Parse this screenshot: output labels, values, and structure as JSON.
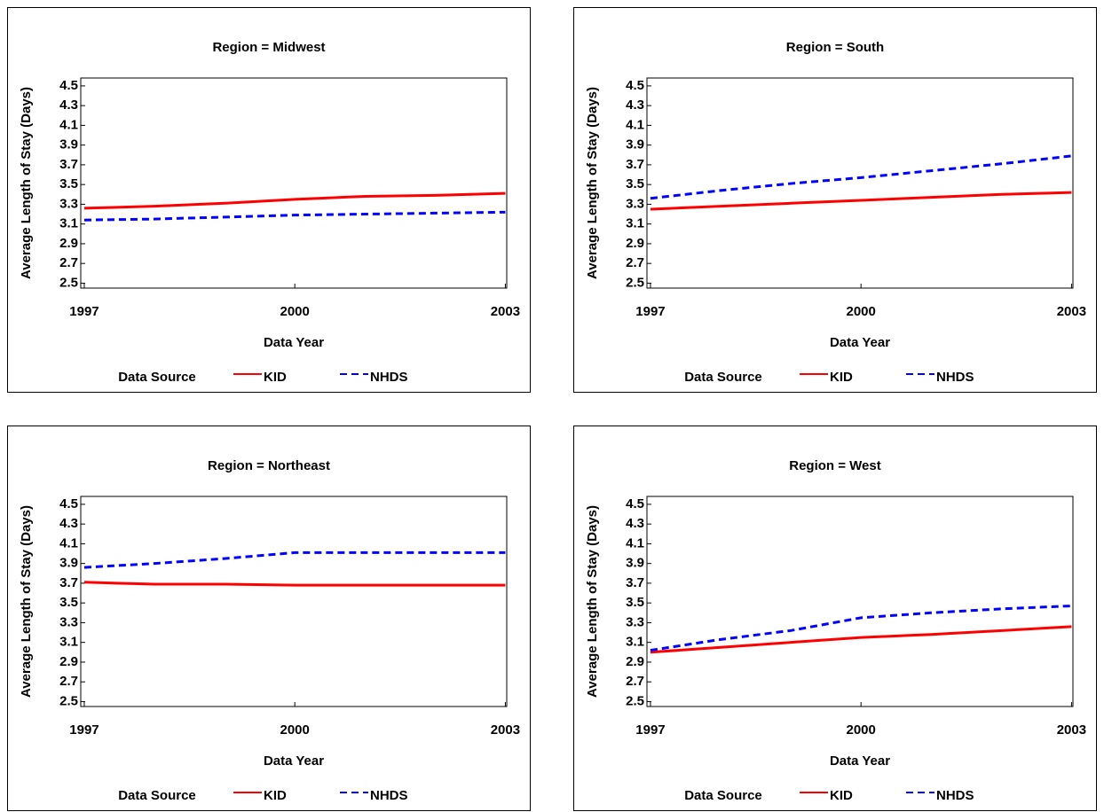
{
  "chart_data": [
    {
      "type": "line",
      "title": "Region = Midwest",
      "x_label": "Data Year",
      "y_label": "Average Length of Stay (Days)",
      "legend_title": "Data Source",
      "x": [
        1997,
        1998,
        1999,
        2000,
        2001,
        2002,
        2003
      ],
      "xlim": [
        1996.95,
        2003.02
      ],
      "xticks": [
        1997,
        2000,
        2003
      ],
      "ylim": [
        2.45,
        4.58
      ],
      "yticks": [
        2.5,
        2.7,
        2.9,
        3.1,
        3.3,
        3.5,
        3.7,
        3.9,
        4.1,
        4.3,
        4.5
      ],
      "series": [
        {
          "name": "KID",
          "color": "#ff0000",
          "style": "solid",
          "values": [
            3.26,
            3.28,
            3.31,
            3.35,
            3.38,
            3.39,
            3.41
          ]
        },
        {
          "name": "NHDS",
          "color": "#0000ff",
          "style": "dashed",
          "values": [
            3.14,
            3.15,
            3.17,
            3.19,
            3.2,
            3.21,
            3.22
          ]
        }
      ]
    },
    {
      "type": "line",
      "title": "Region = South",
      "x_label": "Data Year",
      "y_label": "Average Length of Stay (Days)",
      "legend_title": "Data Source",
      "x": [
        1997,
        1998,
        1999,
        2000,
        2001,
        2002,
        2003
      ],
      "xlim": [
        1996.95,
        2003.02
      ],
      "xticks": [
        1997,
        2000,
        2003
      ],
      "ylim": [
        2.45,
        4.58
      ],
      "yticks": [
        2.5,
        2.7,
        2.9,
        3.1,
        3.3,
        3.5,
        3.7,
        3.9,
        4.1,
        4.3,
        4.5
      ],
      "series": [
        {
          "name": "KID",
          "color": "#ff0000",
          "style": "solid",
          "values": [
            3.25,
            3.28,
            3.31,
            3.34,
            3.37,
            3.4,
            3.42
          ]
        },
        {
          "name": "NHDS",
          "color": "#0000ff",
          "style": "dashed",
          "values": [
            3.36,
            3.44,
            3.51,
            3.57,
            3.64,
            3.71,
            3.79
          ]
        }
      ]
    },
    {
      "type": "line",
      "title": "Region = Northeast",
      "x_label": "Data Year",
      "y_label": "Average Length of Stay (Days)",
      "legend_title": "Data Source",
      "x": [
        1997,
        1998,
        1999,
        2000,
        2001,
        2002,
        2003
      ],
      "xlim": [
        1996.95,
        2003.02
      ],
      "xticks": [
        1997,
        2000,
        2003
      ],
      "ylim": [
        2.45,
        4.58
      ],
      "yticks": [
        2.5,
        2.7,
        2.9,
        3.1,
        3.3,
        3.5,
        3.7,
        3.9,
        4.1,
        4.3,
        4.5
      ],
      "series": [
        {
          "name": "KID",
          "color": "#ff0000",
          "style": "solid",
          "values": [
            3.71,
            3.69,
            3.69,
            3.68,
            3.68,
            3.68,
            3.68
          ]
        },
        {
          "name": "NHDS",
          "color": "#0000ff",
          "style": "dashed",
          "values": [
            3.86,
            3.9,
            3.95,
            4.01,
            4.01,
            4.01,
            4.01
          ]
        }
      ]
    },
    {
      "type": "line",
      "title": "Region = West",
      "x_label": "Data Year",
      "y_label": "Average Length of Stay (Days)",
      "legend_title": "Data Source",
      "x": [
        1997,
        1998,
        1999,
        2000,
        2001,
        2002,
        2003
      ],
      "xlim": [
        1996.95,
        2003.02
      ],
      "xticks": [
        1997,
        2000,
        2003
      ],
      "ylim": [
        2.45,
        4.58
      ],
      "yticks": [
        2.5,
        2.7,
        2.9,
        3.1,
        3.3,
        3.5,
        3.7,
        3.9,
        4.1,
        4.3,
        4.5
      ],
      "series": [
        {
          "name": "KID",
          "color": "#ff0000",
          "style": "solid",
          "values": [
            3.0,
            3.05,
            3.1,
            3.15,
            3.18,
            3.22,
            3.26
          ]
        },
        {
          "name": "NHDS",
          "color": "#0000ff",
          "style": "dashed",
          "values": [
            3.02,
            3.13,
            3.22,
            3.35,
            3.4,
            3.44,
            3.47
          ]
        }
      ]
    }
  ]
}
